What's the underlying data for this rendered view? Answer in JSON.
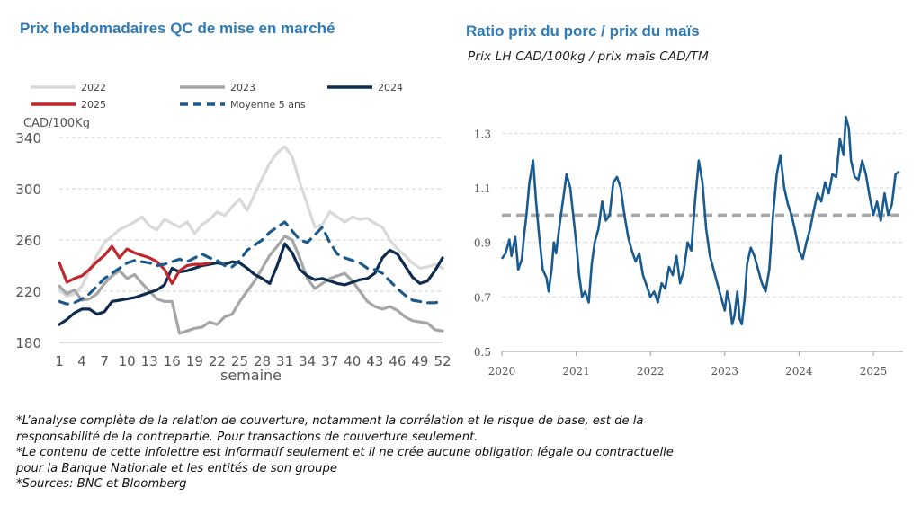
{
  "left": {
    "title": "Prix hebdomadaires QC de mise en marché"
  },
  "right": {
    "title": "Ratio prix du porc / prix du maïs",
    "subtitle": "Prix LH CAD/100kg / prix maïs CAD/TM"
  },
  "footnotes": {
    "line1": "*L’analyse complète de la relation de couverture, notamment la corrélation et le risque de base, est de la",
    "line2": "responsabilité de la contrepartie. Pour transactions de couverture seulement.",
    "line3": "*Le contenu de cette infolettre est informatif seulement et il ne crée aucune obligation légale ou contractuelle",
    "line4": "pour la Banque Nationale et les entités de son groupe",
    "line5": "*Sources: BNC et Bloomberg"
  },
  "chart_data": [
    {
      "type": "line",
      "ylabel": "CAD/100Kg",
      "xlabel": "semaine",
      "ylim": [
        180,
        340
      ],
      "xlim": [
        1,
        52
      ],
      "yticks": [
        180,
        220,
        260,
        300,
        340
      ],
      "xticks": [
        1,
        4,
        7,
        10,
        13,
        16,
        19,
        22,
        25,
        28,
        31,
        34,
        37,
        40,
        43,
        46,
        49,
        52
      ],
      "grid": "horizontal dashed",
      "legend_position": "top",
      "series": [
        {
          "name": "2022",
          "color": "#d9d9d9",
          "dash": false,
          "x": [
            1,
            2,
            3,
            4,
            5,
            6,
            7,
            8,
            9,
            10,
            11,
            12,
            13,
            14,
            15,
            16,
            17,
            18,
            19,
            20,
            21,
            22,
            23,
            24,
            25,
            26,
            27,
            28,
            29,
            30,
            31,
            32,
            33,
            34,
            35,
            36,
            37,
            38,
            39,
            40,
            41,
            42,
            43,
            44,
            45,
            46,
            47,
            48,
            49,
            50,
            51,
            52
          ],
          "values": [
            221,
            216,
            218,
            224,
            236,
            248,
            258,
            263,
            268,
            271,
            274,
            278,
            271,
            268,
            276,
            273,
            270,
            274,
            265,
            272,
            276,
            282,
            279,
            286,
            292,
            283,
            296,
            308,
            320,
            328,
            333,
            325,
            305,
            288,
            270,
            272,
            282,
            278,
            274,
            278,
            276,
            277,
            273,
            270,
            260,
            253,
            248,
            242,
            238,
            239,
            241,
            238
          ]
        },
        {
          "name": "2023",
          "color": "#a6a6a6",
          "dash": false,
          "x": [
            1,
            2,
            3,
            4,
            5,
            6,
            7,
            8,
            9,
            10,
            11,
            12,
            13,
            14,
            15,
            16,
            17,
            18,
            19,
            20,
            21,
            22,
            23,
            24,
            25,
            26,
            27,
            28,
            29,
            30,
            31,
            32,
            33,
            34,
            35,
            36,
            37,
            38,
            39,
            40,
            41,
            42,
            43,
            44,
            45,
            46,
            47,
            48,
            49,
            50,
            51,
            52
          ],
          "values": [
            224,
            218,
            221,
            213,
            214,
            218,
            226,
            232,
            236,
            230,
            233,
            226,
            220,
            214,
            212,
            212,
            187,
            189,
            191,
            192,
            196,
            194,
            200,
            202,
            212,
            220,
            228,
            238,
            248,
            255,
            263,
            260,
            246,
            230,
            222,
            226,
            230,
            232,
            234,
            228,
            220,
            212,
            208,
            206,
            208,
            205,
            200,
            197,
            196,
            195,
            190,
            189
          ]
        },
        {
          "name": "2024",
          "color": "#0d2c4f",
          "dash": false,
          "x": [
            1,
            2,
            3,
            4,
            5,
            6,
            7,
            8,
            9,
            10,
            11,
            12,
            13,
            14,
            15,
            16,
            17,
            18,
            19,
            20,
            21,
            22,
            23,
            24,
            25,
            26,
            27,
            28,
            29,
            30,
            31,
            32,
            33,
            34,
            35,
            36,
            37,
            38,
            39,
            40,
            41,
            42,
            43,
            44,
            45,
            46,
            47,
            48,
            49,
            50,
            51,
            52
          ],
          "values": [
            194,
            198,
            203,
            206,
            206,
            202,
            204,
            212,
            213,
            214,
            215,
            217,
            219,
            221,
            225,
            238,
            235,
            236,
            238,
            240,
            241,
            242,
            241,
            243,
            242,
            238,
            233,
            230,
            226,
            240,
            257,
            250,
            237,
            232,
            229,
            230,
            228,
            226,
            225,
            227,
            229,
            230,
            234,
            246,
            252,
            249,
            240,
            231,
            226,
            228,
            236,
            246
          ]
        },
        {
          "name": "2025",
          "color": "#c0272d",
          "dash": false,
          "x": [
            1,
            2,
            3,
            4,
            5,
            6,
            7,
            8,
            9,
            10,
            11,
            12,
            13,
            14,
            15,
            16,
            17,
            18,
            19,
            20,
            21
          ],
          "values": [
            242,
            227,
            230,
            232,
            237,
            243,
            248,
            255,
            246,
            253,
            250,
            248,
            246,
            243,
            237,
            226,
            236,
            240,
            241,
            241,
            242
          ]
        },
        {
          "name": "Moyenne 5 ans",
          "color": "#1c5a8c",
          "dash": true,
          "x": [
            1,
            2,
            3,
            4,
            5,
            6,
            7,
            8,
            9,
            10,
            11,
            12,
            13,
            14,
            15,
            16,
            17,
            18,
            19,
            20,
            21,
            22,
            23,
            24,
            25,
            26,
            27,
            28,
            29,
            30,
            31,
            32,
            33,
            34,
            35,
            36,
            37,
            38,
            39,
            40,
            41,
            42,
            43,
            44,
            45,
            46,
            47,
            48,
            49,
            50,
            51,
            52
          ],
          "values": [
            212,
            210,
            211,
            214,
            218,
            224,
            230,
            234,
            238,
            242,
            244,
            243,
            242,
            240,
            241,
            243,
            245,
            243,
            246,
            249,
            246,
            244,
            240,
            239,
            244,
            252,
            256,
            260,
            266,
            270,
            274,
            267,
            260,
            258,
            264,
            270,
            258,
            249,
            246,
            244,
            242,
            238,
            237,
            234,
            228,
            222,
            217,
            213,
            212,
            211,
            211,
            212
          ]
        }
      ]
    },
    {
      "type": "line",
      "ylim": [
        0.5,
        1.4
      ],
      "yticks": [
        0.5,
        0.7,
        0.9,
        1.1,
        1.3
      ],
      "ytick_labels": [
        "0.5",
        "0.7",
        "0.9",
        "1.1",
        "1.3"
      ],
      "xticks": [
        2020,
        2021,
        2022,
        2023,
        2024,
        2025
      ],
      "grid": "horizontal dashed",
      "series": [
        {
          "color": "#1a5b8f",
          "x": [
            2020.0,
            2020.05,
            2020.1,
            2020.13,
            2020.18,
            2020.22,
            2020.27,
            2020.3,
            2020.33,
            2020.37,
            2020.42,
            2020.46,
            2020.5,
            2020.55,
            2020.6,
            2020.63,
            2020.67,
            2020.7,
            2020.73,
            2020.78,
            2020.83,
            2020.87,
            2020.92,
            2020.96,
            2021.0,
            2021.04,
            2021.08,
            2021.12,
            2021.17,
            2021.21,
            2021.25,
            2021.3,
            2021.35,
            2021.4,
            2021.45,
            2021.5,
            2021.55,
            2021.6,
            2021.65,
            2021.7,
            2021.75,
            2021.8,
            2021.85,
            2021.9,
            2021.95,
            2022.0,
            2022.05,
            2022.1,
            2022.15,
            2022.2,
            2022.25,
            2022.3,
            2022.35,
            2022.4,
            2022.45,
            2022.5,
            2022.55,
            2022.6,
            2022.65,
            2022.7,
            2022.75,
            2022.8,
            2022.85,
            2022.9,
            2022.95,
            2023.0,
            2023.03,
            2023.07,
            2023.1,
            2023.13,
            2023.17,
            2023.2,
            2023.23,
            2023.27,
            2023.3,
            2023.35,
            2023.4,
            2023.45,
            2023.5,
            2023.55,
            2023.6,
            2023.65,
            2023.7,
            2023.75,
            2023.8,
            2023.85,
            2023.9,
            2023.95,
            2024.0,
            2024.05,
            2024.1,
            2024.15,
            2024.2,
            2024.25,
            2024.3,
            2024.35,
            2024.4,
            2024.45,
            2024.5,
            2024.55,
            2024.6,
            2024.63,
            2024.67,
            2024.7,
            2024.75,
            2024.8,
            2024.85,
            2024.9,
            2024.95,
            2025.0,
            2025.05,
            2025.1,
            2025.15,
            2025.2,
            2025.25,
            2025.3,
            2025.35
          ],
          "values": [
            0.84,
            0.86,
            0.91,
            0.85,
            0.92,
            0.8,
            0.84,
            0.93,
            1.0,
            1.12,
            1.2,
            1.05,
            0.93,
            0.8,
            0.77,
            0.72,
            0.8,
            0.9,
            0.86,
            0.97,
            1.07,
            1.15,
            1.1,
            1.0,
            0.9,
            0.78,
            0.7,
            0.72,
            0.68,
            0.82,
            0.9,
            0.95,
            1.05,
            0.98,
            1.0,
            1.12,
            1.14,
            1.1,
            1.0,
            0.92,
            0.87,
            0.83,
            0.86,
            0.78,
            0.74,
            0.7,
            0.72,
            0.68,
            0.75,
            0.73,
            0.81,
            0.78,
            0.85,
            0.75,
            0.8,
            0.9,
            0.87,
            1.05,
            1.2,
            1.12,
            0.95,
            0.85,
            0.8,
            0.75,
            0.7,
            0.65,
            0.72,
            0.67,
            0.6,
            0.63,
            0.72,
            0.62,
            0.6,
            0.7,
            0.82,
            0.88,
            0.85,
            0.8,
            0.75,
            0.72,
            0.8,
            1.0,
            1.15,
            1.22,
            1.1,
            1.04,
            1.0,
            0.94,
            0.87,
            0.84,
            0.9,
            0.95,
            1.02,
            1.08,
            1.05,
            1.12,
            1.08,
            1.15,
            1.14,
            1.28,
            1.22,
            1.36,
            1.32,
            1.2,
            1.14,
            1.13,
            1.2,
            1.15,
            1.07,
            1.0,
            1.05,
            0.98,
            1.08,
            1.0,
            1.04,
            1.15,
            1.16
          ]
        },
        {
          "color": "#a6a6a6",
          "dash": true,
          "x": [
            2020.0,
            2025.35
          ],
          "values": [
            1.0,
            1.0
          ]
        }
      ]
    }
  ]
}
